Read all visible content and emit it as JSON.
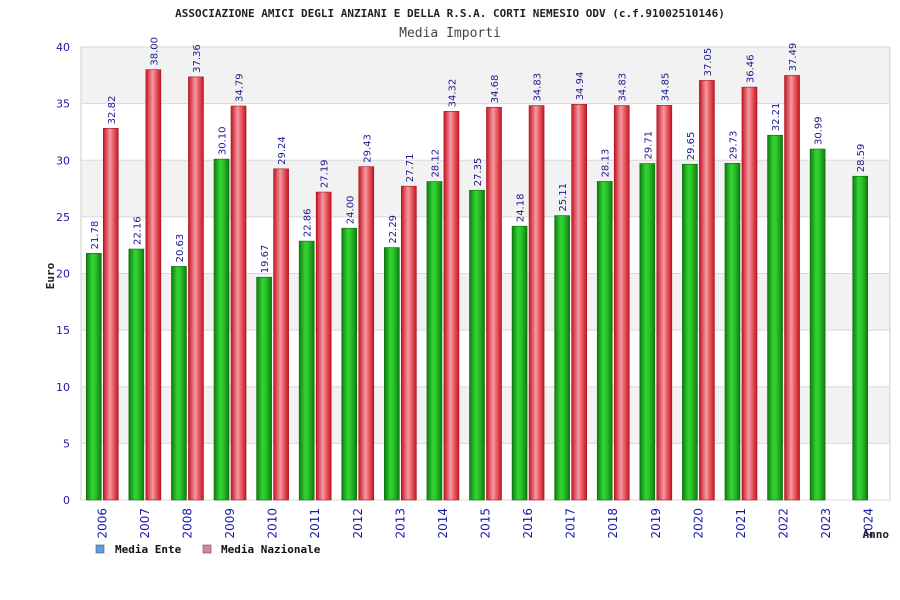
{
  "chart_data": {
    "type": "bar",
    "title": "ASSOCIAZIONE AMICI DEGLI ANZIANI E DELLA R.S.A. CORTI NEMESIO ODV (c.f.91002510146)",
    "subtitle": "Media Importi",
    "xlabel": "Anno",
    "ylabel": "Euro",
    "ylim": [
      0,
      40
    ],
    "yticks": [
      0,
      5,
      10,
      15,
      20,
      25,
      30,
      35,
      40
    ],
    "grid": true,
    "legend_position": "bottom-left",
    "categories": [
      "2006",
      "2007",
      "2008",
      "2009",
      "2010",
      "2011",
      "2012",
      "2013",
      "2014",
      "2015",
      "2016",
      "2017",
      "2018",
      "2019",
      "2020",
      "2021",
      "2022",
      "2023",
      "2024"
    ],
    "series": [
      {
        "name": "Media Ente",
        "legend_color": "#5aa0e6",
        "color": "#1db51d",
        "values": [
          21.78,
          22.16,
          20.63,
          30.1,
          19.67,
          22.86,
          24.0,
          22.29,
          28.12,
          27.35,
          24.18,
          25.11,
          28.13,
          29.71,
          29.65,
          29.73,
          32.21,
          30.99,
          28.59
        ],
        "labels": [
          "21.78",
          "22.16",
          "20.63",
          "30.10",
          "19.67",
          "22.86",
          "24.00",
          "22.29",
          "28.12",
          "27.35",
          "24.18",
          "25.11",
          "28.13",
          "29.71",
          "29.65",
          "29.73",
          "32.21",
          "30.99",
          "28.59"
        ]
      },
      {
        "name": "Media Nazionale",
        "legend_color": "#e07fa5",
        "color": "#e8303a",
        "values": [
          32.82,
          38.0,
          37.36,
          34.79,
          29.24,
          27.19,
          29.43,
          27.71,
          34.32,
          34.68,
          34.83,
          34.94,
          34.83,
          34.85,
          37.05,
          36.46,
          37.49,
          null,
          null
        ],
        "labels": [
          "32.82",
          "38.00",
          "37.36",
          "34.79",
          "29.24",
          "27.19",
          "29.43",
          "27.71",
          "34.32",
          "34.68",
          "34.83",
          "34.94",
          "34.83",
          "34.85",
          "37.05",
          "36.46",
          "37.49",
          "",
          ""
        ]
      }
    ]
  }
}
